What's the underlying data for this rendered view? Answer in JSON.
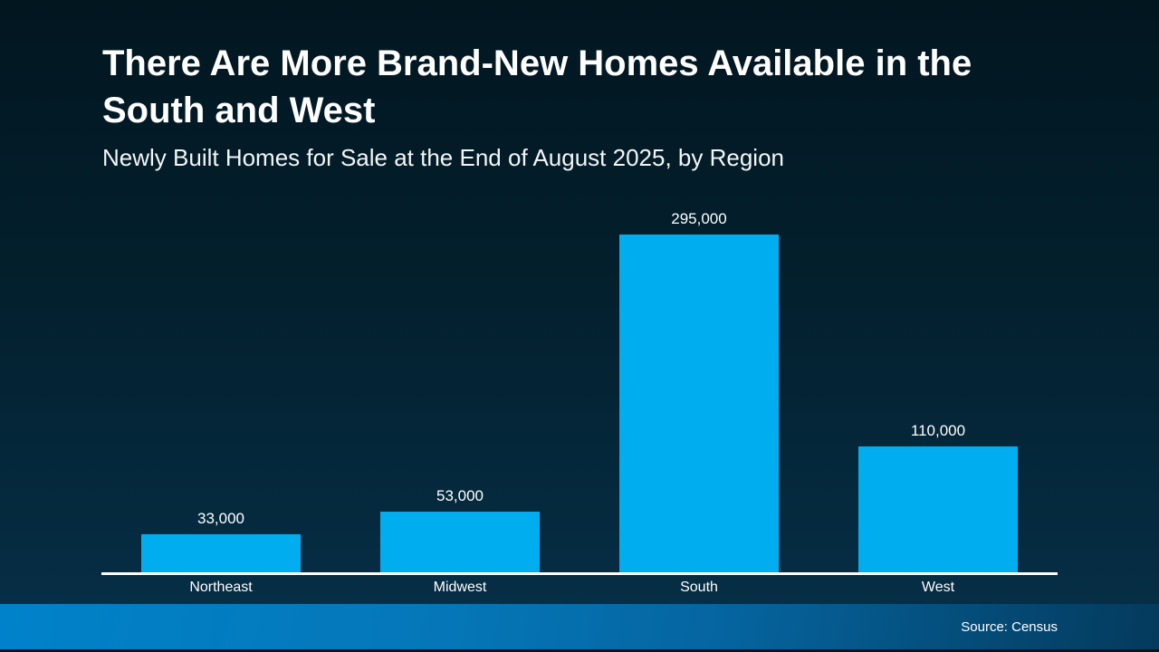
{
  "slide": {
    "title_line1": "There Are More Brand-New Homes Available in the",
    "title_line2": "South and West",
    "subtitle": "Newly Built Homes for Sale at the End of August 2025, by Region",
    "source": "Source: Census"
  },
  "colors": {
    "bar": "#00AEEF",
    "axis": "#FFFFFF",
    "background_top": "#021620",
    "background_bottom": "#063049",
    "footer_left": "#0082CA",
    "footer_right": "#043A5C",
    "text": "#FFFFFF"
  },
  "chart_data": {
    "type": "bar",
    "title": "There Are More Brand-New Homes Available in the South and West",
    "subtitle": "Newly Built Homes for Sale at the End of August 2025, by Region",
    "categories": [
      "Northeast",
      "Midwest",
      "South",
      "West"
    ],
    "values": [
      33000,
      53000,
      295000,
      110000
    ],
    "value_labels": [
      "33,000",
      "53,000",
      "295,000",
      "110,000"
    ],
    "xlabel": "",
    "ylabel": "",
    "ylim": [
      0,
      310000
    ],
    "grid": false,
    "legend": false,
    "bar_color": "#00AEEF"
  }
}
